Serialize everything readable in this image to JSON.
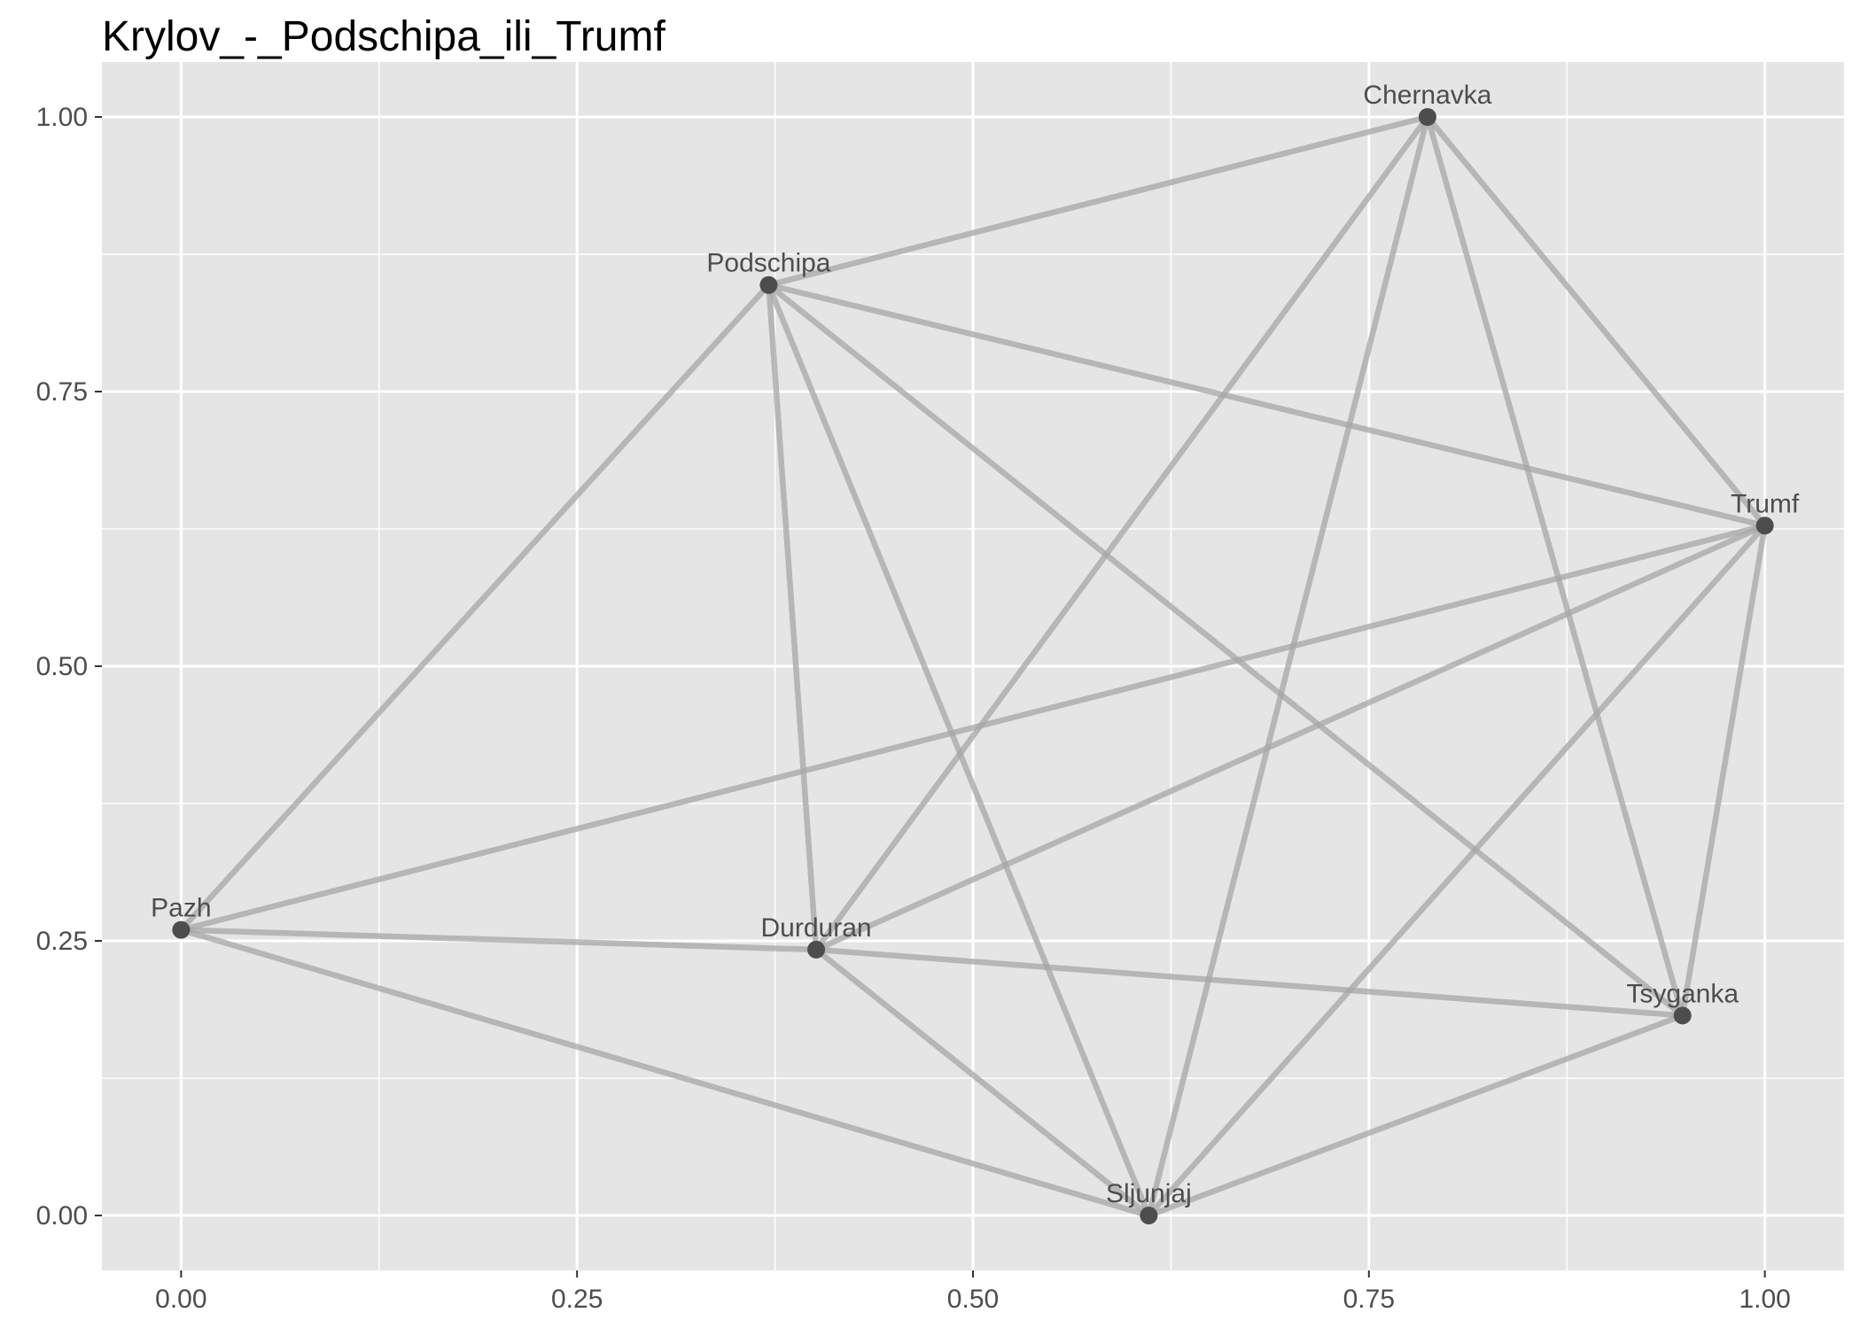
{
  "title": "Krylov_-_Podschipa_ili_Trumf",
  "colors": {
    "panel_background": "#e5e5e5",
    "grid_line": "#ffffff",
    "edge": "#a6a6a6",
    "node": "#4d4d4d",
    "node_label": "#4d4d4d",
    "tick_label": "#4d4d4d"
  },
  "chart_data": {
    "type": "scatter",
    "subtype": "network-graph",
    "title": "Krylov_-_Podschipa_ili_Trumf",
    "xlabel": "",
    "ylabel": "",
    "xlim": [
      -0.05,
      1.05
    ],
    "ylim": [
      -0.05,
      1.05
    ],
    "x_ticks": [
      0.0,
      0.25,
      0.5,
      0.75,
      1.0
    ],
    "x_tick_labels": [
      "0.00",
      "0.25",
      "0.50",
      "0.75",
      "1.00"
    ],
    "y_ticks": [
      0.0,
      0.25,
      0.5,
      0.75,
      1.0
    ],
    "y_tick_labels": [
      "0.00",
      "0.25",
      "0.50",
      "0.75",
      "1.00"
    ],
    "grid": true,
    "legend": "none",
    "nodes": [
      {
        "name": "Chernavka",
        "x": 0.787,
        "y": 1.0
      },
      {
        "name": "Podschipa",
        "x": 0.371,
        "y": 0.847
      },
      {
        "name": "Trumf",
        "x": 1.0,
        "y": 0.628
      },
      {
        "name": "Pazh",
        "x": 0.0,
        "y": 0.26
      },
      {
        "name": "Durduran",
        "x": 0.401,
        "y": 0.242
      },
      {
        "name": "Tsyganka",
        "x": 0.948,
        "y": 0.182
      },
      {
        "name": "Sljunjaj",
        "x": 0.611,
        "y": 0.0
      }
    ],
    "edges": [
      [
        "Podschipa",
        "Chernavka"
      ],
      [
        "Podschipa",
        "Trumf"
      ],
      [
        "Podschipa",
        "Pazh"
      ],
      [
        "Podschipa",
        "Durduran"
      ],
      [
        "Podschipa",
        "Sljunjaj"
      ],
      [
        "Podschipa",
        "Tsyganka"
      ],
      [
        "Chernavka",
        "Durduran"
      ],
      [
        "Chernavka",
        "Trumf"
      ],
      [
        "Chernavka",
        "Tsyganka"
      ],
      [
        "Chernavka",
        "Sljunjaj"
      ],
      [
        "Trumf",
        "Pazh"
      ],
      [
        "Trumf",
        "Durduran"
      ],
      [
        "Trumf",
        "Sljunjaj"
      ],
      [
        "Trumf",
        "Tsyganka"
      ],
      [
        "Pazh",
        "Durduran"
      ],
      [
        "Pazh",
        "Sljunjaj"
      ],
      [
        "Durduran",
        "Tsyganka"
      ],
      [
        "Durduran",
        "Sljunjaj"
      ],
      [
        "Sljunjaj",
        "Tsyganka"
      ]
    ]
  }
}
